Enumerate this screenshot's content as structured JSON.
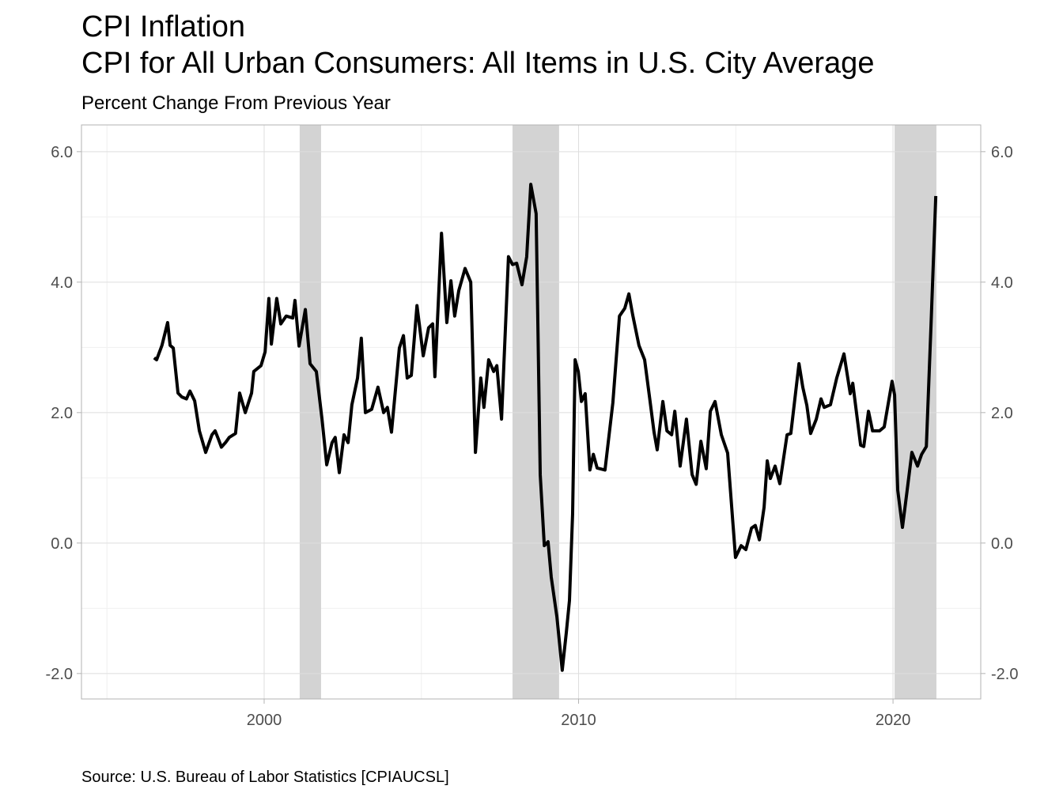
{
  "chart_data": {
    "type": "line",
    "title": "CPI Inflation",
    "subtitle": "CPI for All Urban Consumers: All Items in U.S. City Average",
    "y_label": "Percent Change From Previous Year",
    "caption": "Source: U.S. Bureau of Labor Statistics [CPIAUCSL]",
    "color": "#000000",
    "shade_color": "#d3d3d3",
    "grid": true,
    "secondary_axis": true,
    "recessions": [
      [
        2001.13,
        2001.81
      ],
      [
        2007.9,
        2009.38
      ],
      [
        2020.05,
        2021.38
      ]
    ],
    "xlim": [
      1994.19,
      2022.79
    ],
    "xticks": [
      2000,
      2010,
      2020
    ],
    "ylim": [
      -2.39,
      6.41
    ],
    "yticks": [
      {
        "value": -2,
        "label": "-2.0"
      },
      {
        "value": 0,
        "label": "0.0"
      },
      {
        "value": 2,
        "label": "2.0"
      },
      {
        "value": 4,
        "label": "4.0"
      },
      {
        "value": 6,
        "label": "6.0"
      }
    ],
    "x": [
      1996.5,
      1996.58,
      1996.75,
      1996.93,
      1997.01,
      1997.11,
      1997.26,
      1997.38,
      1997.53,
      1997.64,
      1997.79,
      1997.94,
      1998.14,
      1998.34,
      1998.44,
      1998.54,
      1998.64,
      1998.77,
      1998.89,
      1999.09,
      1999.22,
      1999.4,
      1999.6,
      1999.67,
      1999.9,
      2000.03,
      2000.15,
      2000.23,
      2000.4,
      2000.53,
      2000.7,
      2000.91,
      2000.98,
      2001.11,
      2001.31,
      2001.46,
      2001.66,
      2001.84,
      2001.99,
      2002.16,
      2002.26,
      2002.39,
      2002.54,
      2002.67,
      2002.79,
      2002.97,
      2003.09,
      2003.22,
      2003.42,
      2003.62,
      2003.8,
      2003.92,
      2004.05,
      2004.3,
      2004.43,
      2004.55,
      2004.68,
      2004.86,
      2005.06,
      2005.23,
      2005.36,
      2005.43,
      2005.64,
      2005.81,
      2005.94,
      2006.06,
      2006.19,
      2006.39,
      2006.57,
      2006.72,
      2006.89,
      2006.99,
      2007.14,
      2007.3,
      2007.4,
      2007.55,
      2007.77,
      2007.9,
      2008.03,
      2008.2,
      2008.35,
      2008.48,
      2008.65,
      2008.78,
      2008.91,
      2009.03,
      2009.13,
      2009.31,
      2009.48,
      2009.61,
      2009.71,
      2009.81,
      2009.89,
      2009.99,
      2010.09,
      2010.21,
      2010.36,
      2010.47,
      2010.59,
      2010.84,
      2011.09,
      2011.3,
      2011.47,
      2011.6,
      2011.72,
      2011.92,
      2012.1,
      2012.28,
      2012.4,
      2012.5,
      2012.68,
      2012.81,
      2012.96,
      2013.06,
      2013.23,
      2013.43,
      2013.61,
      2013.74,
      2013.89,
      2014.06,
      2014.19,
      2014.34,
      2014.54,
      2014.74,
      2014.99,
      2015.17,
      2015.32,
      2015.5,
      2015.62,
      2015.75,
      2015.9,
      2016.0,
      2016.1,
      2016.25,
      2016.4,
      2016.63,
      2016.75,
      2017.01,
      2017.13,
      2017.26,
      2017.38,
      2017.56,
      2017.71,
      2017.81,
      2018.01,
      2018.21,
      2018.44,
      2018.64,
      2018.72,
      2018.97,
      2019.07,
      2019.22,
      2019.35,
      2019.57,
      2019.72,
      2019.97,
      2020.05,
      2020.15,
      2020.3,
      2020.45,
      2020.6,
      2020.78,
      2020.91,
      2021.06,
      2021.21,
      2021.36
    ],
    "values": [
      2.84,
      2.81,
      3.03,
      3.38,
      3.03,
      2.99,
      2.3,
      2.24,
      2.21,
      2.33,
      2.18,
      1.72,
      1.39,
      1.66,
      1.72,
      1.6,
      1.47,
      1.54,
      1.62,
      1.68,
      2.3,
      2.0,
      2.3,
      2.63,
      2.72,
      2.93,
      3.75,
      3.05,
      3.75,
      3.36,
      3.48,
      3.45,
      3.72,
      3.02,
      3.58,
      2.75,
      2.63,
      1.9,
      1.2,
      1.54,
      1.62,
      1.08,
      1.66,
      1.54,
      2.12,
      2.53,
      3.14,
      2.0,
      2.05,
      2.39,
      2.0,
      2.08,
      1.7,
      2.99,
      3.18,
      2.53,
      2.57,
      3.64,
      2.87,
      3.3,
      3.36,
      2.55,
      4.75,
      3.38,
      4.02,
      3.48,
      3.87,
      4.21,
      4.0,
      1.39,
      2.53,
      2.08,
      2.81,
      2.63,
      2.72,
      1.9,
      4.39,
      4.27,
      4.29,
      3.96,
      4.39,
      5.5,
      5.05,
      1.05,
      -0.04,
      0.02,
      -0.52,
      -1.13,
      -1.95,
      -1.37,
      -0.88,
      0.45,
      2.81,
      2.63,
      2.17,
      2.29,
      1.12,
      1.36,
      1.15,
      1.12,
      2.15,
      3.48,
      3.6,
      3.82,
      3.5,
      3.03,
      2.81,
      2.15,
      1.7,
      1.43,
      2.17,
      1.72,
      1.66,
      2.02,
      1.18,
      1.9,
      1.05,
      0.9,
      1.56,
      1.14,
      2.02,
      2.17,
      1.66,
      1.38,
      -0.22,
      -0.04,
      -0.1,
      0.23,
      0.27,
      0.05,
      0.55,
      1.26,
      0.99,
      1.18,
      0.91,
      1.66,
      1.68,
      2.75,
      2.39,
      2.11,
      1.68,
      1.9,
      2.21,
      2.08,
      2.12,
      2.53,
      2.9,
      2.29,
      2.45,
      1.5,
      1.48,
      2.02,
      1.72,
      1.72,
      1.78,
      2.48,
      2.27,
      0.81,
      0.24,
      0.81,
      1.39,
      1.18,
      1.36,
      1.48,
      3.36,
      5.32
    ]
  }
}
